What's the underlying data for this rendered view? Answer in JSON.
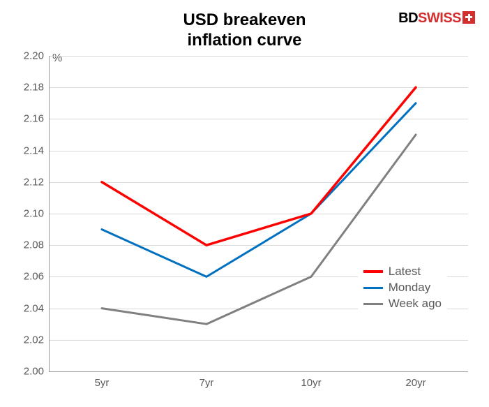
{
  "brand": {
    "part1": "BD",
    "part2": "SWISS"
  },
  "chart": {
    "type": "line",
    "title_line1": "USD breakeven",
    "title_line2": "inflation curve",
    "title_fontsize": 24,
    "y_unit": "%",
    "background_color": "#ffffff",
    "grid_color": "#d9d9d9",
    "axis_color": "#999999",
    "text_color": "#595959",
    "ylim": [
      2.0,
      2.2
    ],
    "ytick_step": 0.02,
    "yticks": [
      "2.00",
      "2.02",
      "2.04",
      "2.06",
      "2.08",
      "2.10",
      "2.12",
      "2.14",
      "2.16",
      "2.18",
      "2.20"
    ],
    "categories": [
      "5yr",
      "7yr",
      "10yr",
      "20yr"
    ],
    "series": [
      {
        "name": "Latest",
        "color": "#ff0000",
        "line_width": 3.5,
        "values": [
          2.12,
          2.08,
          2.1,
          2.18
        ]
      },
      {
        "name": "Monday",
        "color": "#0070c0",
        "line_width": 3,
        "values": [
          2.09,
          2.06,
          2.1,
          2.17
        ]
      },
      {
        "name": "Week ago",
        "color": "#808080",
        "line_width": 3,
        "values": [
          2.04,
          2.03,
          2.06,
          2.15
        ]
      }
    ],
    "legend_position": "right-lower",
    "label_fontsize": 15
  }
}
